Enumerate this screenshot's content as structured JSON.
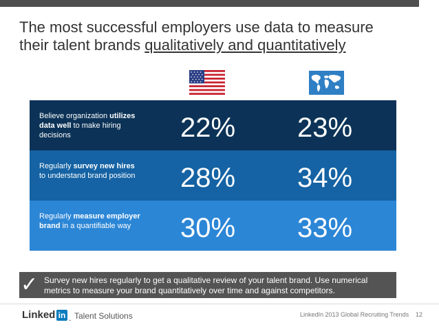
{
  "slide": {
    "title_line1": "The most successful employers use data to measure",
    "title_line2_prefix": "their talent brands ",
    "title_line2_underlined": "qualitatively and quantitatively"
  },
  "columns": [
    {
      "icon": "us-flag-icon"
    },
    {
      "icon": "world-map-icon"
    }
  ],
  "rows": [
    {
      "label_pre": "Believe organization ",
      "label_bold": "utilizes data well",
      "label_post": " to make hiring decisions",
      "us_value": "22%",
      "global_value": "23%",
      "color": "#0c3357"
    },
    {
      "label_pre": "Regularly ",
      "label_bold": "survey new hires",
      "label_post": " to understand brand position",
      "us_value": "28%",
      "global_value": "34%",
      "color": "#1563a4"
    },
    {
      "label_pre": "Regularly ",
      "label_bold": "measure employer brand",
      "label_post": " in a quantifiable way",
      "us_value": "30%",
      "global_value": "33%",
      "color": "#2c86d6"
    }
  ],
  "callout": {
    "check": "✓",
    "text": "Survey new hires regularly to get a qualitative review of your talent brand. Use numerical metrics to measure your brand quantitatively over time and against competitors."
  },
  "footer": {
    "logo_text": "Linked",
    "logo_in": "in",
    "logo_dot": ".",
    "logo_sub": "Talent Solutions",
    "source": "LinkedIn 2013 Global Recruiting Trends",
    "page_number": "12"
  }
}
